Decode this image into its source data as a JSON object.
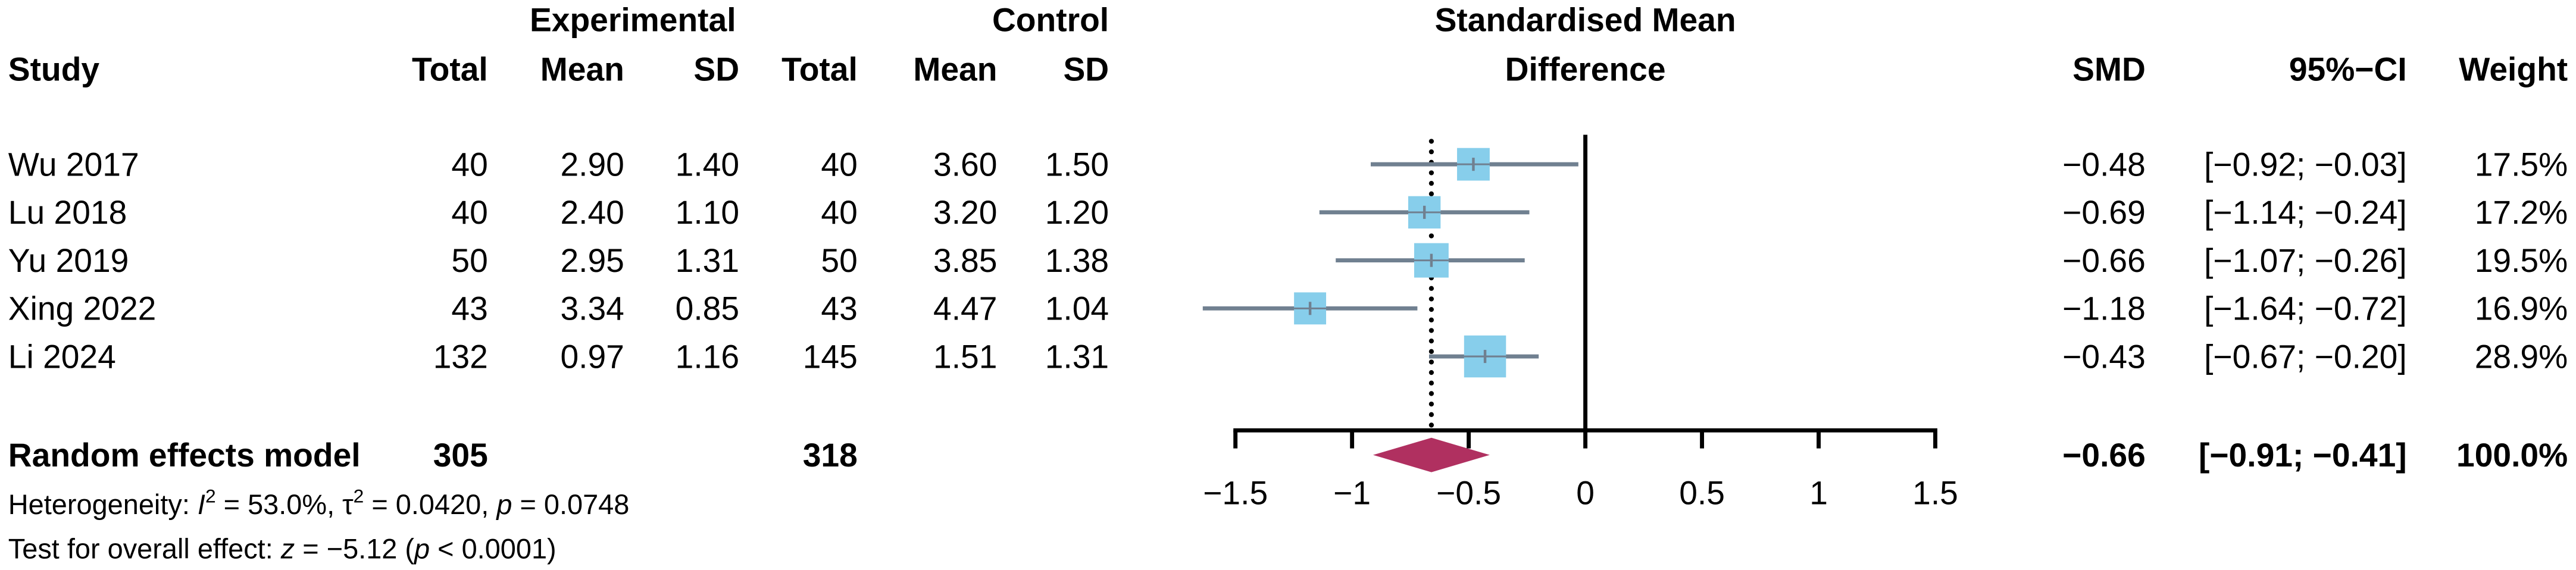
{
  "chart_data": {
    "type": "scatter",
    "title": "Standardised Mean",
    "subtitle": "Difference",
    "group_labels": {
      "experimental": "Experimental",
      "control": "Control"
    },
    "columns": {
      "study": "Study",
      "exp_total": "Total",
      "exp_mean": "Mean",
      "exp_sd": "SD",
      "ctrl_total": "Total",
      "ctrl_mean": "Mean",
      "ctrl_sd": "SD",
      "smd": "SMD",
      "ci": "95%−CI",
      "weight": "Weight"
    },
    "studies": [
      {
        "study": "Wu 2017",
        "exp_total": "40",
        "exp_mean": "2.90",
        "exp_sd": "1.40",
        "ctrl_total": "40",
        "ctrl_mean": "3.60",
        "ctrl_sd": "1.50",
        "smd_text": "−0.48",
        "ci_text": "[−0.92; −0.03]",
        "weight_text": "17.5%",
        "smd": -0.48,
        "ci_lower": -0.92,
        "ci_upper": -0.03,
        "weight": 17.5
      },
      {
        "study": "Lu 2018",
        "exp_total": "40",
        "exp_mean": "2.40",
        "exp_sd": "1.10",
        "ctrl_total": "40",
        "ctrl_mean": "3.20",
        "ctrl_sd": "1.20",
        "smd_text": "−0.69",
        "ci_text": "[−1.14; −0.24]",
        "weight_text": "17.2%",
        "smd": -0.69,
        "ci_lower": -1.14,
        "ci_upper": -0.24,
        "weight": 17.2
      },
      {
        "study": "Yu 2019",
        "exp_total": "50",
        "exp_mean": "2.95",
        "exp_sd": "1.31",
        "ctrl_total": "50",
        "ctrl_mean": "3.85",
        "ctrl_sd": "1.38",
        "smd_text": "−0.66",
        "ci_text": "[−1.07; −0.26]",
        "weight_text": "19.5%",
        "smd": -0.66,
        "ci_lower": -1.07,
        "ci_upper": -0.26,
        "weight": 19.5
      },
      {
        "study": "Xing 2022",
        "exp_total": "43",
        "exp_mean": "3.34",
        "exp_sd": "0.85",
        "ctrl_total": "43",
        "ctrl_mean": "4.47",
        "ctrl_sd": "1.04",
        "smd_text": "−1.18",
        "ci_text": "[−1.64; −0.72]",
        "weight_text": "16.9%",
        "smd": -1.18,
        "ci_lower": -1.64,
        "ci_upper": -0.72,
        "weight": 16.9
      },
      {
        "study": "Li 2024",
        "exp_total": "132",
        "exp_mean": "0.97",
        "exp_sd": "1.16",
        "ctrl_total": "145",
        "ctrl_mean": "1.51",
        "ctrl_sd": "1.31",
        "smd_text": "−0.43",
        "ci_text": "[−0.67; −0.20]",
        "weight_text": "28.9%",
        "smd": -0.43,
        "ci_lower": -0.67,
        "ci_upper": -0.2,
        "weight": 28.9
      }
    ],
    "pooled": {
      "label": "Random effects model",
      "exp_total": "305",
      "ctrl_total": "318",
      "smd_text": "−0.66",
      "ci_text": "[−0.91; −0.41]",
      "weight_text": "100.0%",
      "smd": -0.66,
      "ci_lower": -0.91,
      "ci_upper": -0.41
    },
    "heterogeneity": {
      "label": "Heterogeneity: ",
      "i2_symbol": "I",
      "i2_exponent": "2",
      "i2_value": " = 53.0%, ",
      "tau2_symbol": "τ",
      "tau2_exponent": "2",
      "tau2_value": " = 0.0420, ",
      "p_symbol": "p",
      "p_value": " = 0.0748"
    },
    "overall_effect": {
      "label": "Test for overall effect: ",
      "z_symbol": "z",
      "z_value": " = −5.12 (",
      "p_symbol": "p",
      "p_value": " < 0.0001)"
    },
    "x_axis": {
      "xlim": [
        -1.5,
        1.5
      ],
      "ticks": [
        -1.5,
        -1,
        -0.5,
        0,
        0.5,
        1,
        1.5
      ],
      "tick_labels": [
        "−1.5",
        "−1",
        "−0.5",
        "0",
        "0.5",
        "1",
        "1.5"
      ],
      "reference_line": 0
    },
    "colors": {
      "square": "#87CEEB",
      "ci_line": "#708090",
      "diamond": "#B03060",
      "axis": "#000000"
    }
  }
}
